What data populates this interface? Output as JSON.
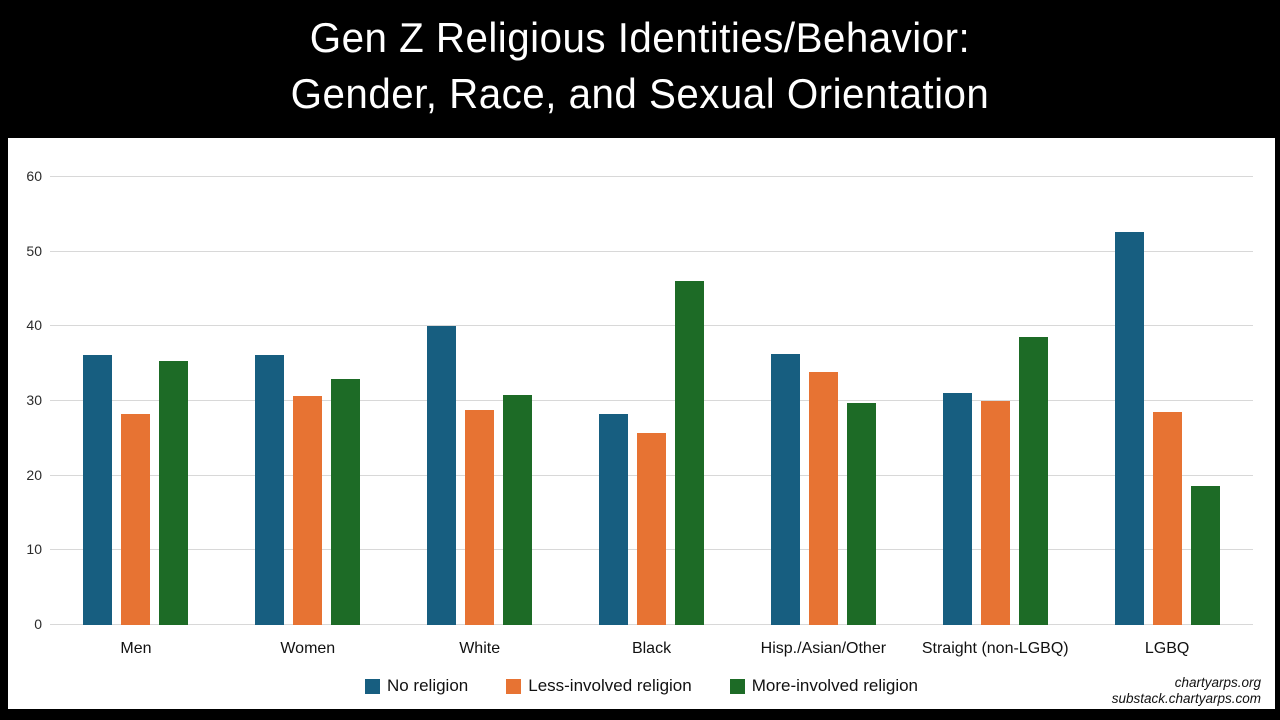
{
  "header": {
    "title_line1": "Gen Z Religious Identities/Behavior:",
    "title_line2": "Gender, Race, and Sexual Orientation"
  },
  "footer": {
    "credit_line1": "chartyarps.org",
    "credit_line2": "substack.chartyarps.com"
  },
  "colors": {
    "background_frame": "#000000",
    "chart_background": "#ffffff",
    "gridline": "#d8d8d8",
    "axis_text": "#2b2b2b"
  },
  "chart_data": {
    "type": "bar",
    "title": "Gen Z Religious Identities/Behavior: Gender, Race, and Sexual Orientation",
    "categories": [
      "Men",
      "Women",
      "White",
      "Black",
      "Hisp./Asian/Other",
      "Straight (non-LGBQ)",
      "LGBQ"
    ],
    "series": [
      {
        "name": "No religion",
        "color": "#175e80",
        "values": [
          36.2,
          36.1,
          40.0,
          28.3,
          36.3,
          31.1,
          52.6
        ]
      },
      {
        "name": "Less-involved religion",
        "color": "#e77333",
        "values": [
          28.2,
          30.6,
          28.8,
          25.7,
          33.9,
          30.0,
          28.5
        ]
      },
      {
        "name": "More-involved religion",
        "color": "#1d6b26",
        "values": [
          35.4,
          32.9,
          30.8,
          46.0,
          29.7,
          38.6,
          18.6
        ]
      }
    ],
    "xlabel": "",
    "ylabel": "",
    "yticks": [
      0,
      10,
      20,
      30,
      40,
      50,
      60
    ],
    "ylim": [
      0,
      65.2
    ],
    "grid": true,
    "legend_position": "bottom"
  }
}
